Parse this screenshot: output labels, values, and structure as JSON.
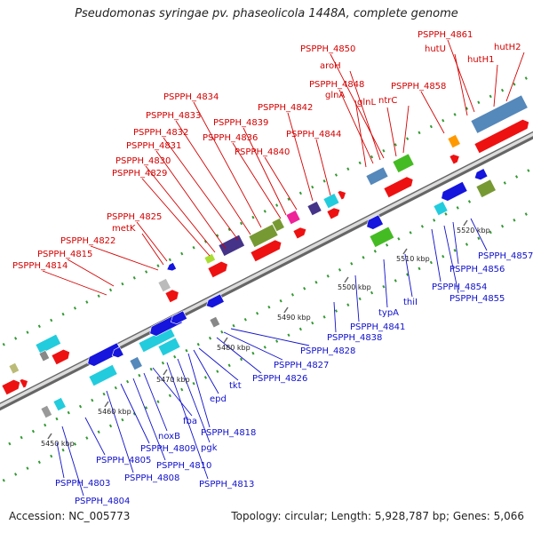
{
  "title": "Pseudomonas syringae pv. phaseolicola 1448A, complete genome",
  "footer": {
    "accession": "Accession: NC_005773",
    "stats": "Topology: circular; Length: 5,928,787 bp; Genes: 5,066"
  },
  "colors": {
    "forward": "#ee1111",
    "reverse": "#1515dd",
    "label_forward": "#d40000",
    "label_reverse": "#1010cc",
    "cyan": "#22ccdd",
    "green": "#44bb22",
    "olive": "#779933",
    "steel": "#5588bb",
    "purple": "#443388",
    "magenta": "#ee2299",
    "orange": "#ff9900",
    "ring_dot_forward": "#339933"
  },
  "scale_ticks": [
    "5450 kbp",
    "5460 kbp",
    "5470 kbp",
    "5480 kbp",
    "5490 kbp",
    "5500 kbp",
    "5510 kbp",
    "5520 kbp"
  ],
  "forward_labels": [
    "PSPPH_4814",
    "PSPPH_4815",
    "PSPPH_4822",
    "metK",
    "PSPPH_4825",
    "PSPPH_4829",
    "PSPPH_4830",
    "PSPPH_4831",
    "PSPPH_4832",
    "PSPPH_4833",
    "PSPPH_4834",
    "PSPPH_4836",
    "PSPPH_4839",
    "PSPPH_4840",
    "PSPPH_4842",
    "PSPPH_4844",
    "glnA",
    "PSPPH_4848",
    "aroH",
    "PSPPH_4850",
    "glnL",
    "ntrC",
    "PSPPH_4858",
    "hutU",
    "PSPPH_4861",
    "hutH1",
    "hutH2"
  ],
  "reverse_labels": [
    "PSPPH_4803",
    "PSPPH_4804",
    "PSPPH_4805",
    "PSPPH_4808",
    "PSPPH_4809",
    "PSPPH_4810",
    "noxB",
    "fba",
    "PSPPH_4813",
    "pgk",
    "PSPPH_4818",
    "epd",
    "tkt",
    "PSPPH_4826",
    "PSPPH_4827",
    "PSPPH_4828",
    "PSPPH_4838",
    "PSPPH_4841",
    "typA",
    "thiI",
    "PSPPH_4854",
    "PSPPH_4855",
    "PSPPH_4856",
    "PSPPH_4857"
  ]
}
